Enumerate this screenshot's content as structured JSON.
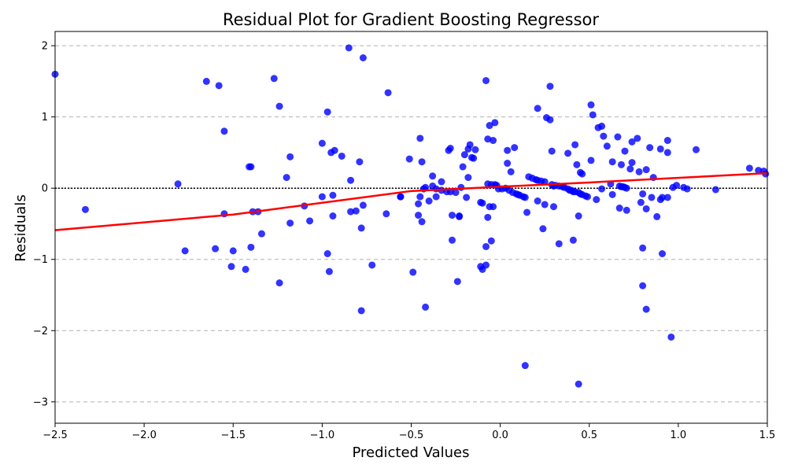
{
  "chart_data": {
    "type": "scatter",
    "title": "Residual Plot for Gradient Boosting Regressor",
    "xlabel": "Predicted Values",
    "ylabel": "Residuals",
    "xlim": [
      -2.5,
      1.5
    ],
    "ylim": [
      -3.3,
      2.2
    ],
    "xticks": [
      -2.5,
      -2.0,
      -1.5,
      -1.0,
      -0.5,
      0.0,
      0.5,
      1.0,
      1.5
    ],
    "xtick_labels": [
      "−2.5",
      "−2.0",
      "−1.5",
      "−1.0",
      "−0.5",
      "0.0",
      "0.5",
      "1.0",
      "1.5"
    ],
    "yticks": [
      -3,
      -2,
      -1,
      0,
      1,
      2
    ],
    "ytick_labels": [
      "−3",
      "−2",
      "−1",
      "0",
      "1",
      "2"
    ],
    "grid": "y-dashed",
    "reference_line_y": 0,
    "colors": {
      "points": "#0000ff",
      "trend": "#ff0000",
      "reference": "#000000",
      "grid": "#b0b0b0"
    },
    "trend_line": [
      [
        -2.5,
        -0.59
      ],
      [
        -1.5,
        -0.37
      ],
      [
        -0.5,
        -0.04
      ],
      [
        0.5,
        0.08
      ],
      [
        1.5,
        0.21
      ]
    ],
    "points": [
      [
        -2.5,
        1.6
      ],
      [
        -2.33,
        -0.3
      ],
      [
        -1.81,
        0.06
      ],
      [
        -1.77,
        -0.88
      ],
      [
        -1.65,
        1.5
      ],
      [
        -1.6,
        -0.85
      ],
      [
        -1.58,
        1.44
      ],
      [
        -1.55,
        0.8
      ],
      [
        -1.55,
        -0.36
      ],
      [
        -1.51,
        -1.1
      ],
      [
        -1.5,
        -0.88
      ],
      [
        -1.43,
        -1.14
      ],
      [
        -1.41,
        0.3
      ],
      [
        -1.4,
        0.3
      ],
      [
        -1.4,
        -0.83
      ],
      [
        -1.39,
        -0.33
      ],
      [
        -1.36,
        -0.33
      ],
      [
        -1.34,
        -0.64
      ],
      [
        -1.27,
        1.54
      ],
      [
        -1.24,
        1.15
      ],
      [
        -1.24,
        -1.33
      ],
      [
        -1.2,
        0.15
      ],
      [
        -1.18,
        0.44
      ],
      [
        -1.18,
        -0.49
      ],
      [
        -1.1,
        -0.25
      ],
      [
        -1.07,
        -0.46
      ],
      [
        -1.0,
        0.63
      ],
      [
        -1.0,
        -0.12
      ],
      [
        -0.97,
        1.07
      ],
      [
        -0.97,
        -0.92
      ],
      [
        -0.96,
        -1.17
      ],
      [
        -0.95,
        0.5
      ],
      [
        -0.94,
        -0.39
      ],
      [
        -0.94,
        -0.1
      ],
      [
        -0.93,
        0.53
      ],
      [
        -0.89,
        0.45
      ],
      [
        -0.85,
        1.97
      ],
      [
        -0.84,
        0.11
      ],
      [
        -0.84,
        -0.33
      ],
      [
        -0.81,
        -0.32
      ],
      [
        -0.79,
        0.37
      ],
      [
        -0.78,
        -0.56
      ],
      [
        -0.78,
        -1.72
      ],
      [
        -0.77,
        -0.24
      ],
      [
        -0.77,
        1.83
      ],
      [
        -0.72,
        -1.08
      ],
      [
        -0.64,
        -0.36
      ],
      [
        -0.63,
        1.34
      ],
      [
        -0.56,
        -0.12
      ],
      [
        -0.56,
        -0.12
      ],
      [
        -0.51,
        0.41
      ],
      [
        -0.49,
        -1.18
      ],
      [
        -0.46,
        -0.38
      ],
      [
        -0.46,
        -0.22
      ],
      [
        -0.45,
        0.7
      ],
      [
        -0.45,
        -0.12
      ],
      [
        -0.44,
        0.37
      ],
      [
        -0.44,
        -0.47
      ],
      [
        -0.43,
        -0.01
      ],
      [
        -0.42,
        -1.67
      ],
      [
        -0.42,
        0.01
      ],
      [
        -0.4,
        -0.18
      ],
      [
        -0.38,
        0.17
      ],
      [
        -0.38,
        0.03
      ],
      [
        -0.36,
        -0.12
      ],
      [
        -0.36,
        -0.01
      ],
      [
        -0.33,
        0.09
      ],
      [
        -0.33,
        -0.03
      ],
      [
        -0.3,
        -0.05
      ],
      [
        -0.29,
        0.53
      ],
      [
        -0.28,
        0.56
      ],
      [
        -0.28,
        -0.05
      ],
      [
        -0.27,
        -0.38
      ],
      [
        -0.27,
        -0.73
      ],
      [
        -0.25,
        -0.06
      ],
      [
        -0.24,
        -1.31
      ],
      [
        -0.23,
        -0.39
      ],
      [
        -0.23,
        -0.4
      ],
      [
        -0.22,
        0.01
      ],
      [
        -0.21,
        0.3
      ],
      [
        -0.2,
        0.47
      ],
      [
        -0.19,
        -0.13
      ],
      [
        -0.18,
        0.55
      ],
      [
        -0.18,
        0.15
      ],
      [
        -0.17,
        0.61
      ],
      [
        -0.16,
        0.43
      ],
      [
        -0.15,
        0.42
      ],
      [
        -0.14,
        0.54
      ],
      [
        -0.11,
        -0.2
      ],
      [
        -0.11,
        -1.1
      ],
      [
        -0.1,
        -0.21
      ],
      [
        -0.1,
        -1.14
      ],
      [
        -0.08,
        -1.08
      ],
      [
        -0.08,
        -0.82
      ],
      [
        -0.08,
        1.51
      ],
      [
        -0.07,
        0.06
      ],
      [
        -0.07,
        0.69
      ],
      [
        -0.07,
        -0.41
      ],
      [
        -0.06,
        -0.26
      ],
      [
        -0.06,
        0.88
      ],
      [
        -0.05,
        -0.74
      ],
      [
        -0.05,
        0.05
      ],
      [
        -0.04,
        0.67
      ],
      [
        -0.04,
        -0.26
      ],
      [
        -0.03,
        0.05
      ],
      [
        -0.03,
        0.92
      ],
      [
        -0.02,
        0.04
      ],
      [
        -0.01,
        -0.01
      ],
      [
        0.01,
        -0.01
      ],
      [
        0.03,
        0.0
      ],
      [
        0.04,
        0.53
      ],
      [
        0.04,
        0.35
      ],
      [
        0.05,
        -0.03
      ],
      [
        0.06,
        0.23
      ],
      [
        0.07,
        -0.06
      ],
      [
        0.08,
        0.57
      ],
      [
        0.09,
        -0.08
      ],
      [
        0.1,
        -0.09
      ],
      [
        0.11,
        -0.1
      ],
      [
        0.13,
        -0.12
      ],
      [
        0.14,
        -2.49
      ],
      [
        0.14,
        -0.13
      ],
      [
        0.15,
        -0.34
      ],
      [
        0.16,
        0.16
      ],
      [
        0.18,
        0.14
      ],
      [
        0.2,
        0.12
      ],
      [
        0.21,
        0.11
      ],
      [
        0.21,
        1.12
      ],
      [
        0.21,
        -0.18
      ],
      [
        0.23,
        0.1
      ],
      [
        0.24,
        -0.57
      ],
      [
        0.25,
        0.09
      ],
      [
        0.25,
        -0.23
      ],
      [
        0.26,
        0.99
      ],
      [
        0.28,
        0.96
      ],
      [
        0.28,
        1.43
      ],
      [
        0.29,
        0.52
      ],
      [
        0.29,
        0.05
      ],
      [
        0.3,
        0.03
      ],
      [
        0.3,
        -0.26
      ],
      [
        0.31,
        0.04
      ],
      [
        0.33,
        -0.78
      ],
      [
        0.33,
        0.03
      ],
      [
        0.35,
        0.02
      ],
      [
        0.36,
        0.01
      ],
      [
        0.38,
        -0.01
      ],
      [
        0.38,
        0.49
      ],
      [
        0.39,
        -0.03
      ],
      [
        0.4,
        -0.03
      ],
      [
        0.41,
        -0.05
      ],
      [
        0.41,
        -0.73
      ],
      [
        0.42,
        -0.05
      ],
      [
        0.42,
        0.61
      ],
      [
        0.43,
        0.33
      ],
      [
        0.44,
        -0.06
      ],
      [
        0.44,
        -2.75
      ],
      [
        0.44,
        -0.39
      ],
      [
        0.45,
        0.22
      ],
      [
        0.45,
        -0.08
      ],
      [
        0.46,
        -0.09
      ],
      [
        0.46,
        0.2
      ],
      [
        0.48,
        -0.11
      ],
      [
        0.49,
        -0.12
      ],
      [
        0.51,
        1.17
      ],
      [
        0.51,
        0.39
      ],
      [
        0.52,
        1.03
      ],
      [
        0.54,
        -0.16
      ],
      [
        0.55,
        0.85
      ],
      [
        0.57,
        0.87
      ],
      [
        0.57,
        -0.01
      ],
      [
        0.58,
        0.73
      ],
      [
        0.6,
        0.59
      ],
      [
        0.62,
        0.06
      ],
      [
        0.63,
        0.37
      ],
      [
        0.63,
        -0.09
      ],
      [
        0.66,
        0.72
      ],
      [
        0.67,
        0.03
      ],
      [
        0.67,
        -0.28
      ],
      [
        0.68,
        0.33
      ],
      [
        0.68,
        0.02
      ],
      [
        0.69,
        0.02
      ],
      [
        0.7,
        0.01
      ],
      [
        0.7,
        0.52
      ],
      [
        0.71,
        0.0
      ],
      [
        0.71,
        -0.31
      ],
      [
        0.73,
        0.27
      ],
      [
        0.74,
        0.65
      ],
      [
        0.74,
        0.36
      ],
      [
        0.77,
        0.7
      ],
      [
        0.78,
        0.23
      ],
      [
        0.79,
        -0.2
      ],
      [
        0.8,
        -1.37
      ],
      [
        0.8,
        -0.84
      ],
      [
        0.8,
        -0.08
      ],
      [
        0.82,
        0.26
      ],
      [
        0.82,
        -1.7
      ],
      [
        0.82,
        -0.29
      ],
      [
        0.84,
        0.57
      ],
      [
        0.85,
        -0.13
      ],
      [
        0.86,
        0.15
      ],
      [
        0.88,
        -0.4
      ],
      [
        0.9,
        0.55
      ],
      [
        0.9,
        -0.16
      ],
      [
        0.91,
        -0.92
      ],
      [
        0.91,
        -0.13
      ],
      [
        0.94,
        0.67
      ],
      [
        0.94,
        0.5
      ],
      [
        0.94,
        -0.13
      ],
      [
        0.96,
        -2.09
      ],
      [
        0.97,
        0.01
      ],
      [
        0.99,
        0.04
      ],
      [
        1.03,
        0.01
      ],
      [
        1.05,
        -0.01
      ],
      [
        1.1,
        0.54
      ],
      [
        1.21,
        -0.02
      ],
      [
        1.4,
        0.28
      ],
      [
        1.45,
        0.25
      ],
      [
        1.48,
        0.24
      ],
      [
        1.49,
        0.2
      ]
    ]
  }
}
